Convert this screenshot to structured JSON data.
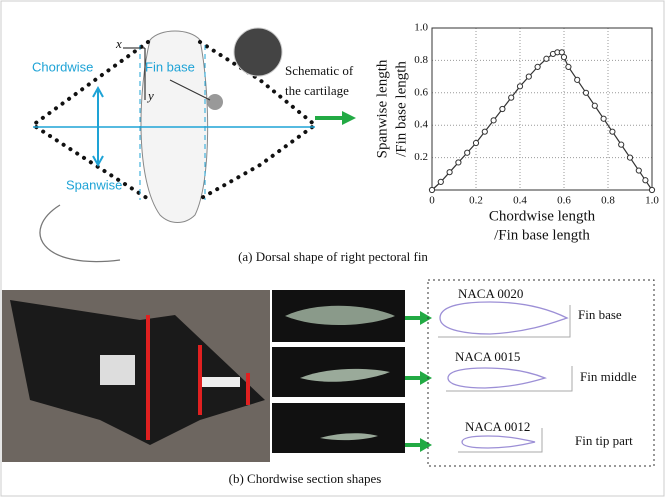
{
  "figure": {
    "labels": {
      "chordwise": "Chordwise",
      "spanwise": "Spanwise",
      "fin_base": "Fin base",
      "schematic": [
        "Schematic of",
        "the cartilage"
      ],
      "x_axis": "x",
      "y_axis": "y"
    },
    "caption_a": "(a) Dorsal shape of right pectoral fin",
    "caption_b": "(b) Chordwise section shapes",
    "sections": [
      {
        "profile": "NACA 0020",
        "location": "Fin base"
      },
      {
        "profile": "NACA 0015",
        "location": "Fin middle"
      },
      {
        "profile": "NACA 0012",
        "location": "Fin tip part"
      }
    ]
  },
  "chart_data": {
    "type": "line",
    "x_label": [
      "Chordwise length",
      "/Fin base length"
    ],
    "y_label": [
      "Spanwise length",
      "/Fin base length"
    ],
    "x": [
      0,
      0.04,
      0.08,
      0.12,
      0.16,
      0.2,
      0.24,
      0.28,
      0.32,
      0.36,
      0.4,
      0.44,
      0.48,
      0.52,
      0.55,
      0.57,
      0.59,
      0.6,
      0.62,
      0.66,
      0.7,
      0.74,
      0.78,
      0.82,
      0.86,
      0.9,
      0.94,
      0.97,
      1.0
    ],
    "values": [
      0,
      0.05,
      0.11,
      0.17,
      0.23,
      0.29,
      0.36,
      0.43,
      0.5,
      0.57,
      0.64,
      0.7,
      0.76,
      0.81,
      0.84,
      0.85,
      0.85,
      0.82,
      0.76,
      0.68,
      0.6,
      0.52,
      0.44,
      0.36,
      0.28,
      0.2,
      0.12,
      0.06,
      0
    ],
    "color": "#333333",
    "marker": "circle",
    "xlim": [
      0,
      1
    ],
    "ylim": [
      0,
      1
    ],
    "xticks": [
      0,
      0.2,
      0.4,
      0.6,
      0.8,
      {
        "value": 1,
        "label": "1.0"
      }
    ],
    "yticks": [
      0.2,
      0.4,
      0.6,
      0.8,
      {
        "value": 1,
        "label": "1.0"
      }
    ],
    "grid": true
  }
}
